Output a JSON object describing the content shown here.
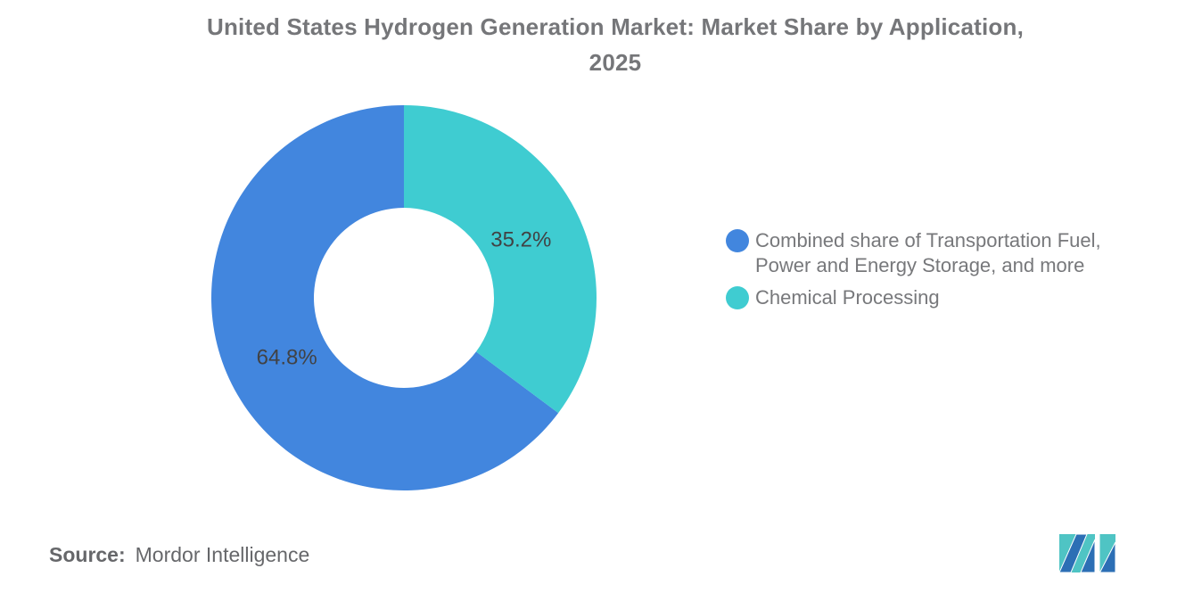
{
  "title_lines": [
    "United States Hydrogen Generation Market: Market Share by Application,",
    "2025"
  ],
  "chart_data": {
    "type": "pie",
    "subtype": "donut",
    "title": "United States Hydrogen Generation Market: Market Share by Application, 2025",
    "unit": "%",
    "segments": [
      {
        "label": "Combined share of Transportation Fuel, Power and Energy Storage, and more",
        "value": 64.8,
        "display": "64.8%",
        "color": "#4286DE"
      },
      {
        "label": "Chemical Processing",
        "value": 35.2,
        "display": "35.2%",
        "color": "#3FCCD1"
      }
    ],
    "start_angle_deg": 0,
    "inner_radius_ratio": 0.468,
    "label_radius_ratio": 0.68,
    "labels_color": "#414244",
    "legend_position": "right",
    "grid": false
  },
  "source": {
    "prefix": "Source:",
    "text": "Mordor Intelligence"
  },
  "logo": {
    "label": "mordor-intelligence-logo",
    "colors": {
      "teal": "#4FC4C4",
      "blue": "#2C6FB5"
    }
  }
}
